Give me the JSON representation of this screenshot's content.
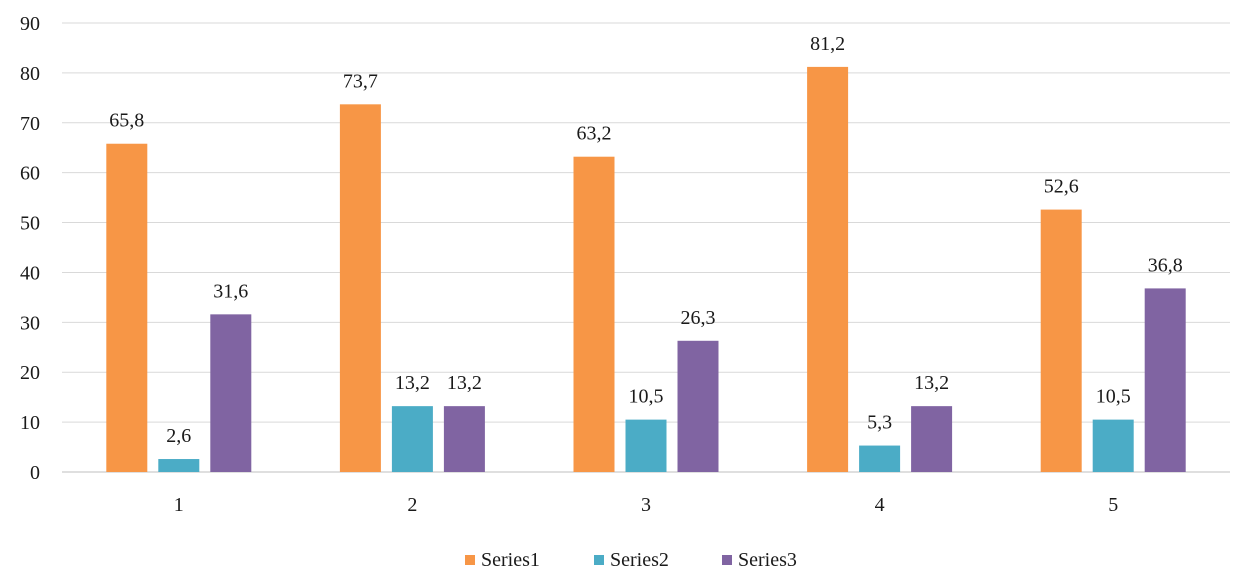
{
  "chart_data": {
    "type": "bar",
    "title": "",
    "xlabel": "",
    "ylabel": "",
    "categories": [
      "1",
      "2",
      "3",
      "4",
      "5"
    ],
    "ylim": [
      0,
      90
    ],
    "yticks": [
      0,
      10,
      20,
      30,
      40,
      50,
      60,
      70,
      80,
      90
    ],
    "grid": true,
    "legend_position": "bottom",
    "series": [
      {
        "name": "Series1",
        "color": "#F79646",
        "values": [
          65.8,
          73.7,
          63.2,
          81.2,
          52.6
        ],
        "labels": [
          "65,8",
          "73,7",
          "63,2",
          "81,2",
          "52,6"
        ]
      },
      {
        "name": "Series2",
        "color": "#4BACC6",
        "values": [
          2.6,
          13.2,
          10.5,
          5.3,
          10.5
        ],
        "labels": [
          "2,6",
          "13,2",
          "10,5",
          "5,3",
          "10,5"
        ]
      },
      {
        "name": "Series3",
        "color": "#8064A2",
        "values": [
          31.6,
          13.2,
          26.3,
          13.2,
          36.8
        ],
        "labels": [
          "31,6",
          "13,2",
          "26,3",
          "13,2",
          "36,8"
        ]
      }
    ]
  }
}
